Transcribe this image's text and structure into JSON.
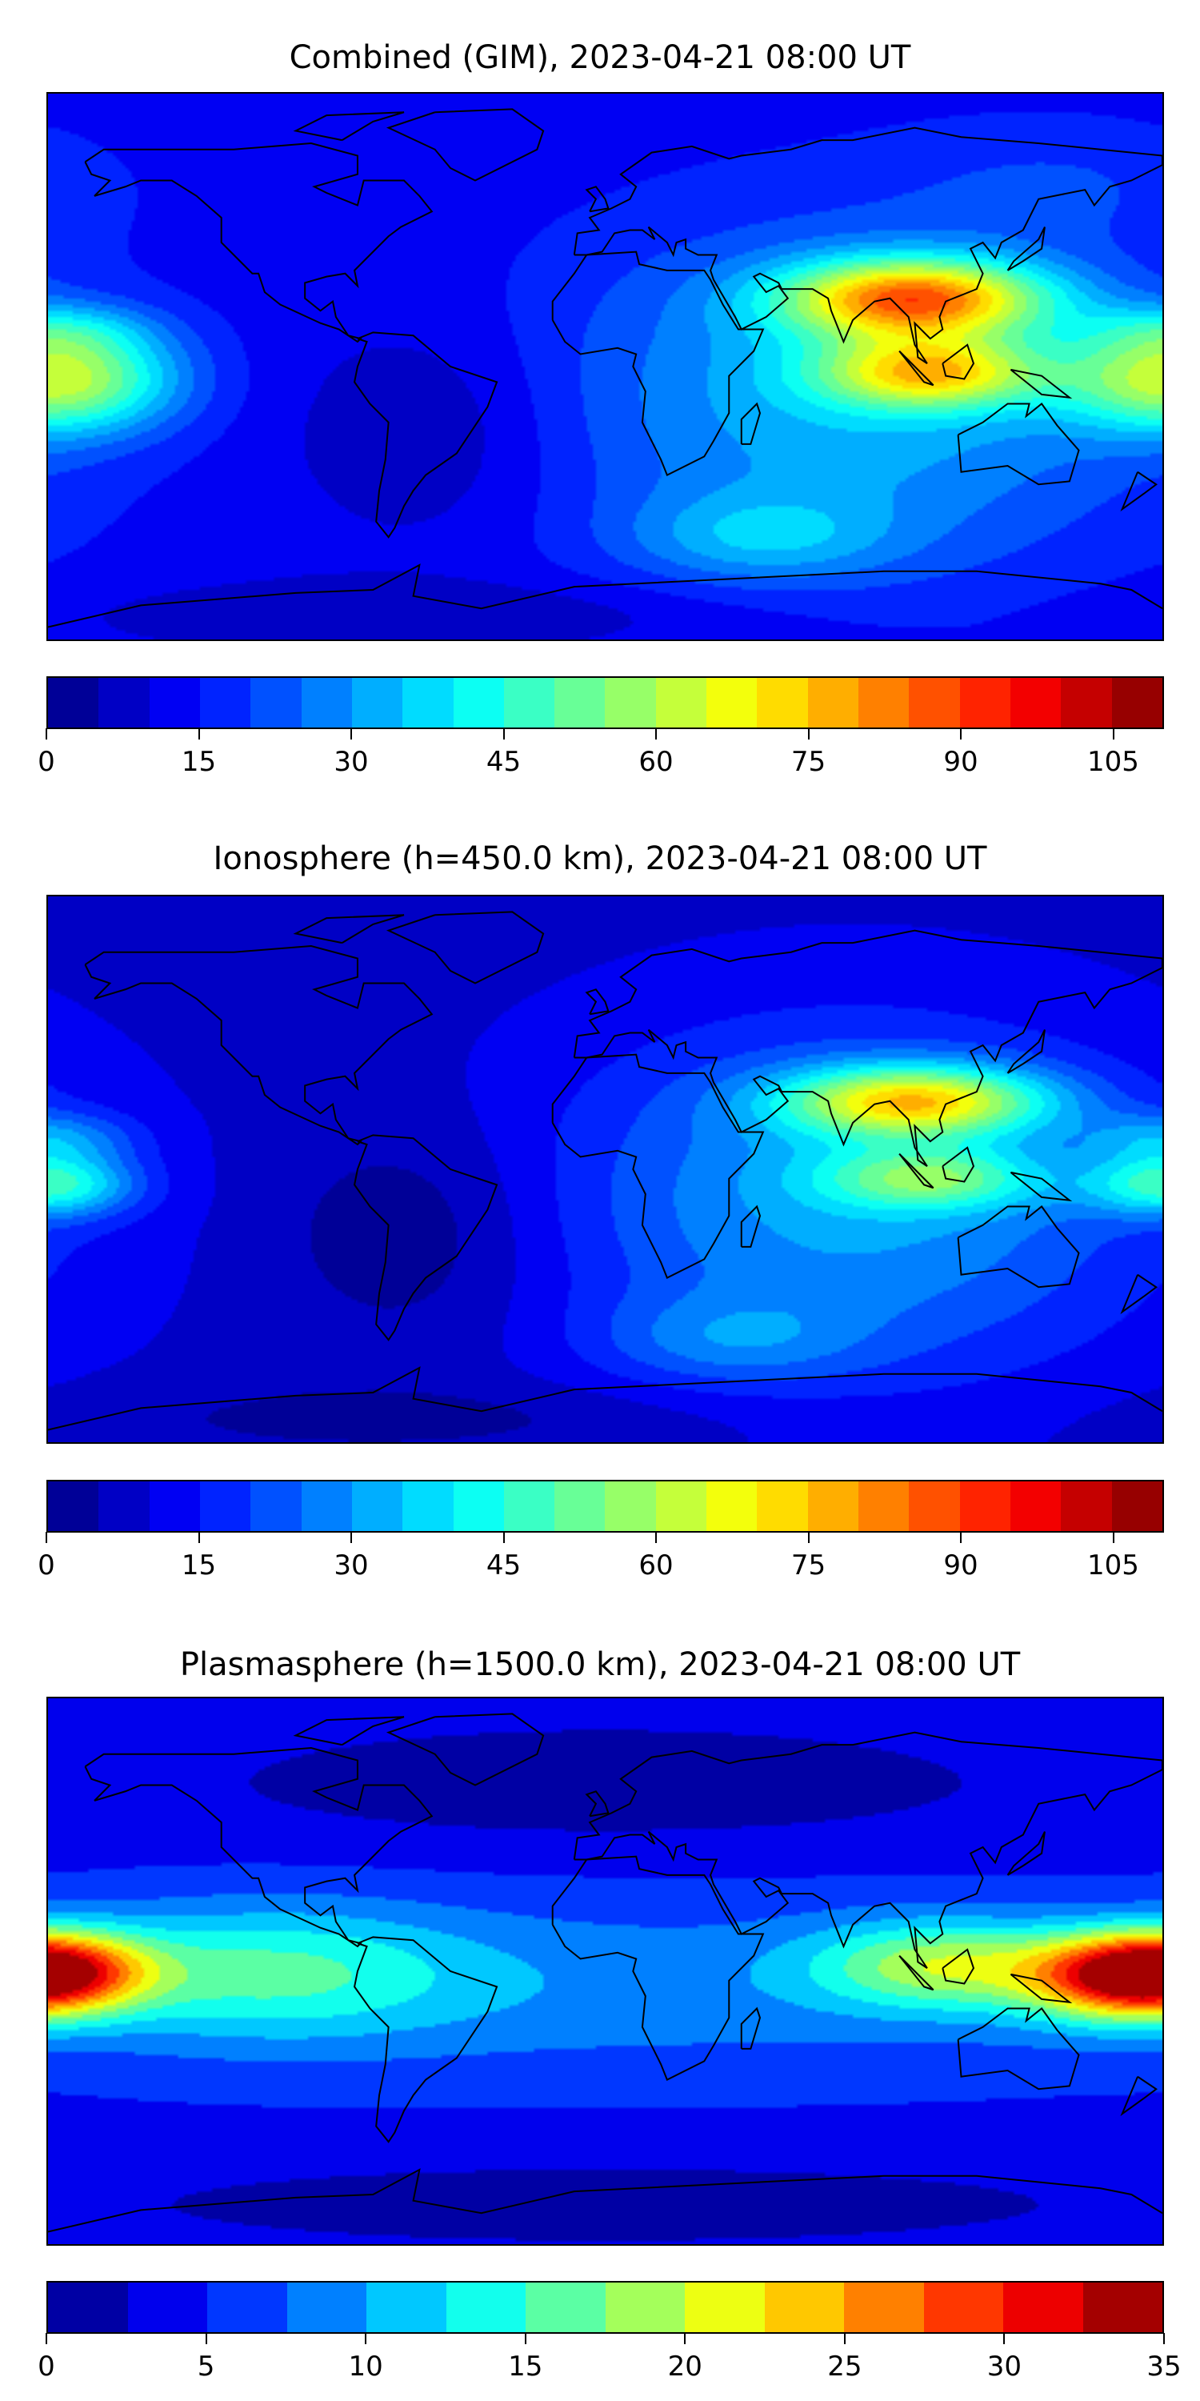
{
  "colormap": "jet",
  "panels": [
    {
      "title": "Combined (GIM), 2023-04-21 08:00 UT",
      "colorbar": {
        "min": 0,
        "max": 110,
        "step": 5,
        "ticks": [
          "0",
          "15",
          "30",
          "45",
          "60",
          "75",
          "90",
          "105"
        ],
        "tick_values": [
          0,
          15,
          30,
          45,
          60,
          75,
          90,
          105
        ]
      }
    },
    {
      "title": "Ionosphere  (h=450.0 km), 2023-04-21 08:00 UT",
      "colorbar": {
        "min": 0,
        "max": 110,
        "step": 5,
        "ticks": [
          "0",
          "15",
          "30",
          "45",
          "60",
          "75",
          "90",
          "105"
        ],
        "tick_values": [
          0,
          15,
          30,
          45,
          60,
          75,
          90,
          105
        ]
      }
    },
    {
      "title": "Plasmasphere (h=1500.0 km), 2023-04-21 08:00 UT",
      "colorbar": {
        "min": 0,
        "max": 35,
        "step": 2.5,
        "ticks": [
          "0",
          "5",
          "10",
          "15",
          "20",
          "25",
          "30",
          "35"
        ],
        "tick_values": [
          0,
          5,
          10,
          15,
          20,
          25,
          30,
          35
        ]
      }
    }
  ]
}
